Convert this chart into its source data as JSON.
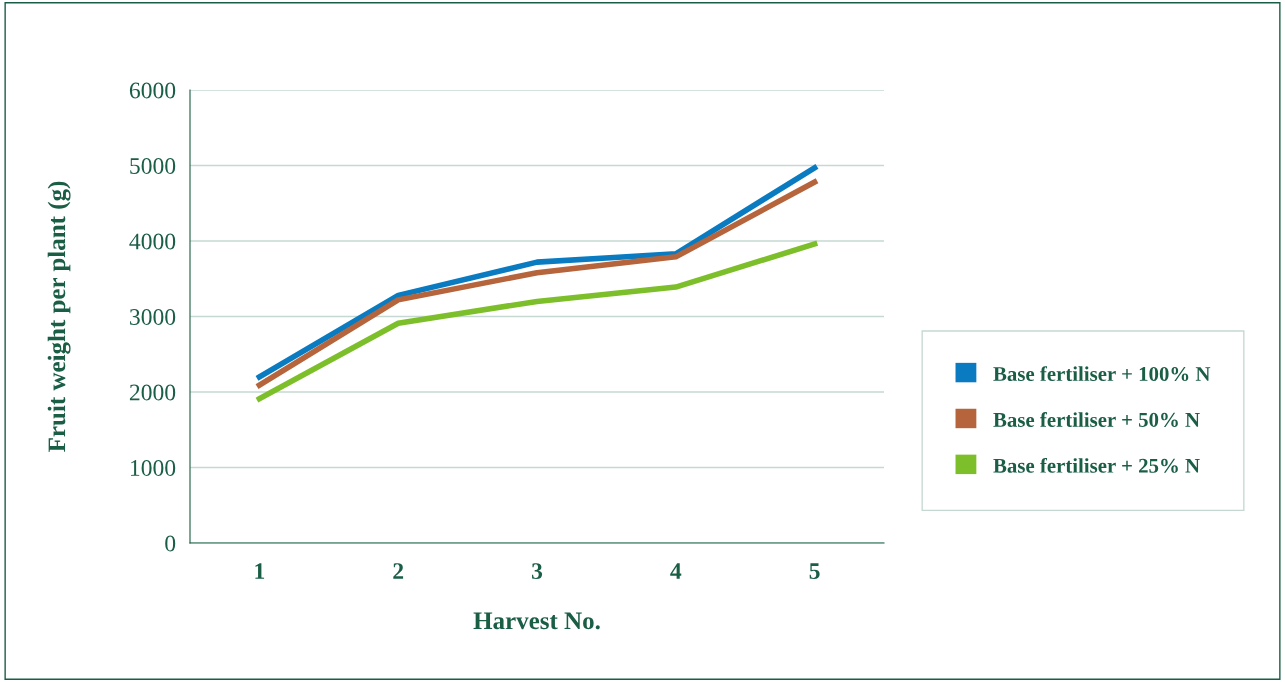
{
  "chart_data": {
    "type": "line",
    "xlabel": "Harvest No.",
    "ylabel": "Fruit weight per plant (g)",
    "categories": [
      "1",
      "2",
      "3",
      "4",
      "5"
    ],
    "series": [
      {
        "name": "Base fertiliser + 100% N",
        "color": "#0a7bc1",
        "values": [
          2200,
          3280,
          3720,
          3830,
          4970
        ]
      },
      {
        "name": "Base fertiliser + 50% N",
        "color": "#b5643c",
        "values": [
          2090,
          3220,
          3580,
          3790,
          4780
        ]
      },
      {
        "name": "Base fertiliser + 25% N",
        "color": "#7dbf2a",
        "values": [
          1910,
          2910,
          3200,
          3390,
          3960
        ]
      }
    ],
    "ylim": [
      0,
      6000
    ],
    "yticks": [
      0,
      1000,
      2000,
      3000,
      4000,
      5000,
      6000
    ],
    "grid": "y",
    "legend": "right",
    "marker": "none",
    "line_style": "solid"
  }
}
